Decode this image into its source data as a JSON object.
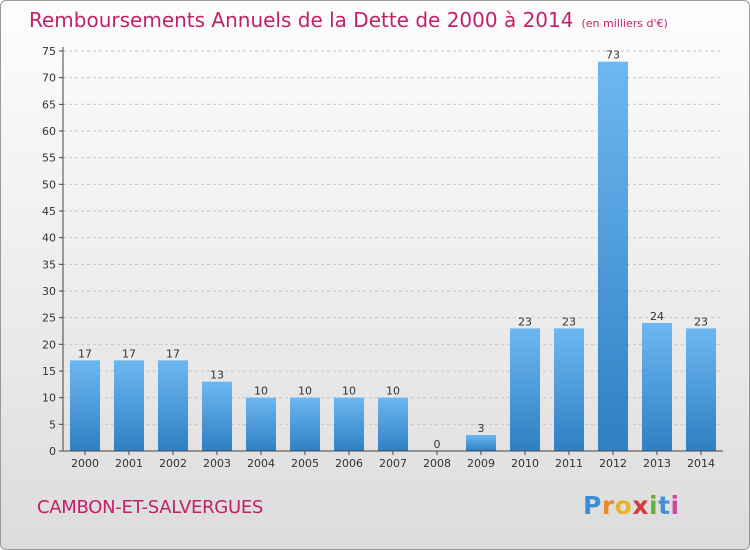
{
  "header": {
    "title": "Remboursements Annuels de la Dette de 2000 à 2014",
    "subtitle": "(en milliers d'€)"
  },
  "footer": {
    "commune": "CAMBON-ET-SALVERGUES",
    "logo_letters": [
      "P",
      "r",
      "o",
      "x",
      "i",
      "t",
      "i"
    ],
    "logo_colors": [
      "#3a8fd6",
      "#e8892a",
      "#e6b52c",
      "#d83a3a",
      "#6cae3c",
      "#4a8fd6",
      "#c84fa0"
    ]
  },
  "colors": {
    "bar_top": "#6db8f2",
    "bar_bottom": "#2f7fc2",
    "axis": "#444444",
    "grid": "#c8c8c8",
    "accent": "#c2206a"
  },
  "chart_data": {
    "type": "bar",
    "title": "Remboursements Annuels de la Dette de 2000 à 2014",
    "ylabel": "en milliers d'€",
    "xlabel": "",
    "categories": [
      "2000",
      "2001",
      "2002",
      "2003",
      "2004",
      "2005",
      "2006",
      "2007",
      "2008",
      "2009",
      "2010",
      "2011",
      "2012",
      "2013",
      "2014"
    ],
    "values": [
      17,
      17,
      17,
      13,
      10,
      10,
      10,
      10,
      0,
      3,
      23,
      23,
      73,
      24,
      23
    ],
    "ylim": [
      0,
      75
    ],
    "yticks": [
      0,
      5,
      10,
      15,
      20,
      25,
      30,
      35,
      40,
      45,
      50,
      55,
      60,
      65,
      70,
      75
    ],
    "grid": true
  }
}
